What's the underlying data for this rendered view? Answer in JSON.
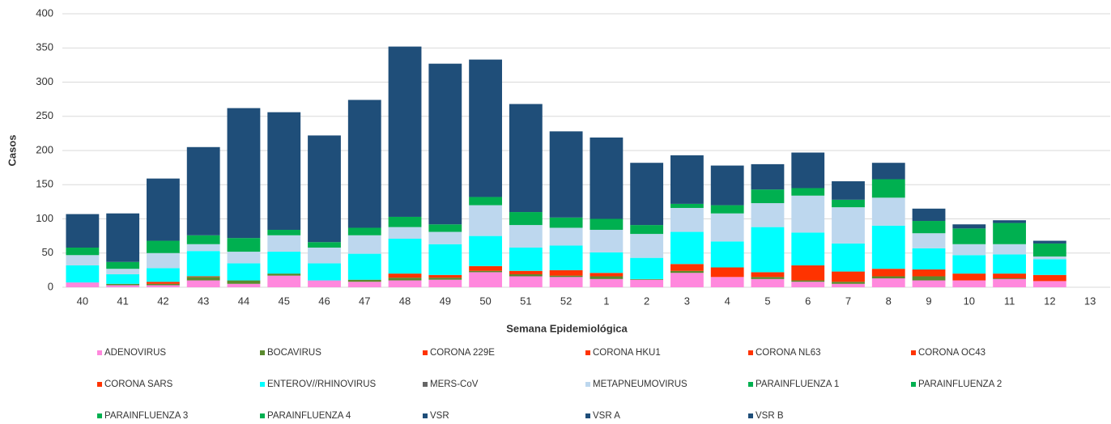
{
  "chart_data": {
    "type": "stacked_bar",
    "x_label": "Semana Epidemiológica",
    "y_label": "Casos",
    "categories": [
      "40",
      "41",
      "42",
      "43",
      "44",
      "45",
      "46",
      "47",
      "48",
      "49",
      "50",
      "51",
      "52",
      "1",
      "2",
      "3",
      "4",
      "5",
      "6",
      "7",
      "8",
      "9",
      "10",
      "11",
      "12",
      "13"
    ],
    "ylim": [
      0,
      400
    ],
    "yticks": [
      0,
      50,
      100,
      150,
      200,
      250,
      300,
      350,
      400
    ],
    "grid": true,
    "legend": "bottom",
    "series": [
      {
        "name": "ADENOVIRUS",
        "color": "#ff88dd",
        "values": [
          7,
          3,
          3,
          10,
          5,
          17,
          10,
          8,
          10,
          11,
          22,
          16,
          15,
          12,
          11,
          21,
          15,
          12,
          8,
          5,
          13,
          10,
          10,
          12,
          9,
          null
        ]
      },
      {
        "name": "BOCAVIRUS",
        "color": "#5a8a2e",
        "values": [
          0,
          2,
          2,
          5,
          5,
          3,
          0,
          3,
          4,
          3,
          2,
          3,
          2,
          4,
          1,
          3,
          0,
          3,
          2,
          3,
          3,
          6,
          0,
          1,
          0,
          null
        ]
      },
      {
        "name": "CORONA 229E",
        "color": "#ff3300",
        "values": [
          0,
          0,
          0,
          0,
          0,
          0,
          0,
          0,
          0,
          0,
          0,
          0,
          0,
          0,
          0,
          0,
          0,
          0,
          0,
          0,
          0,
          0,
          0,
          0,
          0,
          null
        ]
      },
      {
        "name": "CORONA HKU1",
        "color": "#ff3300",
        "values": [
          0,
          0,
          0,
          0,
          0,
          0,
          0,
          0,
          0,
          0,
          0,
          0,
          0,
          0,
          0,
          0,
          0,
          0,
          0,
          0,
          0,
          0,
          0,
          0,
          0,
          null
        ]
      },
      {
        "name": "CORONA NL63",
        "color": "#ff3300",
        "values": [
          0,
          0,
          3,
          1,
          0,
          0,
          0,
          0,
          6,
          4,
          7,
          5,
          8,
          5,
          0,
          10,
          14,
          7,
          22,
          15,
          11,
          10,
          10,
          7,
          9,
          null
        ]
      },
      {
        "name": "CORONA OC43",
        "color": "#ff3300",
        "values": [
          0,
          0,
          0,
          0,
          0,
          0,
          0,
          0,
          0,
          0,
          0,
          0,
          0,
          0,
          0,
          0,
          0,
          0,
          0,
          0,
          0,
          0,
          0,
          0,
          0,
          null
        ]
      },
      {
        "name": "CORONA SARS",
        "color": "#ff3300",
        "values": [
          0,
          0,
          0,
          0,
          0,
          0,
          0,
          0,
          0,
          0,
          0,
          0,
          0,
          0,
          0,
          0,
          0,
          0,
          0,
          0,
          0,
          0,
          0,
          0,
          0,
          null
        ]
      },
      {
        "name": "ENTEROV//RHINOVIRUS",
        "color": "#00ffff",
        "values": [
          25,
          14,
          20,
          37,
          25,
          32,
          25,
          38,
          51,
          45,
          44,
          34,
          36,
          30,
          31,
          47,
          38,
          66,
          48,
          41,
          63,
          31,
          27,
          28,
          23,
          null
        ]
      },
      {
        "name": "MERS-CoV",
        "color": "#666666",
        "values": [
          0,
          0,
          0,
          0,
          0,
          0,
          0,
          0,
          0,
          0,
          0,
          0,
          0,
          0,
          0,
          0,
          0,
          0,
          0,
          0,
          0,
          0,
          0,
          0,
          0,
          null
        ]
      },
      {
        "name": "METAPNEUMOVIRUS",
        "color": "#bdd7ee",
        "values": [
          15,
          8,
          22,
          10,
          17,
          24,
          23,
          27,
          17,
          18,
          45,
          33,
          26,
          33,
          35,
          35,
          41,
          35,
          54,
          53,
          41,
          22,
          16,
          15,
          4,
          null
        ]
      },
      {
        "name": "PARAINFLUENZA 1",
        "color": "#00b050",
        "values": [
          0,
          0,
          0,
          0,
          0,
          0,
          0,
          0,
          0,
          0,
          0,
          0,
          0,
          0,
          0,
          0,
          0,
          0,
          0,
          0,
          0,
          0,
          0,
          0,
          0,
          null
        ]
      },
      {
        "name": "PARAINFLUENZA 2",
        "color": "#00b050",
        "values": [
          0,
          0,
          0,
          0,
          0,
          0,
          0,
          0,
          0,
          0,
          0,
          0,
          0,
          0,
          0,
          0,
          0,
          0,
          0,
          0,
          0,
          0,
          0,
          0,
          0,
          null
        ]
      },
      {
        "name": "PARAINFLUENZA 3",
        "color": "#00b050",
        "values": [
          11,
          10,
          18,
          13,
          20,
          8,
          8,
          11,
          15,
          11,
          12,
          19,
          15,
          16,
          13,
          6,
          12,
          20,
          11,
          11,
          27,
          18,
          23,
          31,
          19,
          null
        ]
      },
      {
        "name": "PARAINFLUENZA 4",
        "color": "#00b050",
        "values": [
          0,
          0,
          0,
          0,
          0,
          0,
          0,
          0,
          0,
          0,
          0,
          0,
          0,
          0,
          0,
          0,
          0,
          0,
          0,
          0,
          0,
          0,
          0,
          0,
          0,
          null
        ]
      },
      {
        "name": "VSR",
        "color": "#1f4e79",
        "values": [
          49,
          71,
          91,
          129,
          190,
          172,
          156,
          187,
          249,
          235,
          201,
          158,
          126,
          119,
          91,
          71,
          58,
          37,
          52,
          27,
          24,
          18,
          6,
          4,
          4,
          null
        ]
      },
      {
        "name": "VSR A",
        "color": "#1f4e79",
        "values": [
          0,
          0,
          0,
          0,
          0,
          0,
          0,
          0,
          0,
          0,
          0,
          0,
          0,
          0,
          0,
          0,
          0,
          0,
          0,
          0,
          0,
          0,
          0,
          0,
          0,
          null
        ]
      },
      {
        "name": "VSR B",
        "color": "#1f4e79",
        "values": [
          0,
          0,
          0,
          0,
          0,
          0,
          0,
          0,
          0,
          0,
          0,
          0,
          0,
          0,
          0,
          0,
          0,
          0,
          0,
          0,
          0,
          0,
          0,
          0,
          0,
          null
        ]
      }
    ]
  }
}
